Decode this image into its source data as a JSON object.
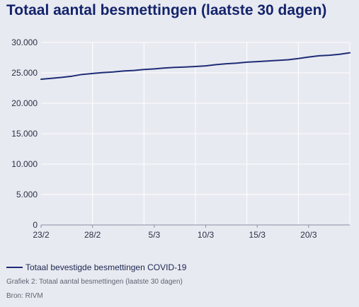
{
  "title": "Totaal aantal besmettingen (laatste 30 dagen)",
  "legend_label": "Totaal bevestigde besmettingen COVID-19",
  "caption": "Grafiek 2: Totaal aantal besmettingen (laatste 30 dagen)",
  "source": "Bron: RIVM",
  "colors": {
    "background": "#e8eaf1",
    "line": "#1e2c76",
    "title": "#14246b",
    "grid": "#ffffff"
  },
  "chart_data": {
    "type": "line",
    "title": "Totaal aantal besmettingen (laatste 30 dagen)",
    "xlabel": "",
    "ylabel": "",
    "grid": true,
    "legend_placement": "bottom-left",
    "ylim": [
      0,
      30000
    ],
    "yticks": [
      0,
      5000,
      10000,
      15000,
      20000,
      25000,
      30000
    ],
    "ytick_labels": [
      "0",
      "5.000",
      "10.000",
      "15.000",
      "20.000",
      "25.000",
      "30.000"
    ],
    "xtick_labels": [
      "23/2",
      "28/2",
      "5/3",
      "10/3",
      "15/3",
      "20/3"
    ],
    "xlim": [
      "23/2",
      "24/3"
    ],
    "series": [
      {
        "name": "Totaal bevestigde besmettingen COVID-19",
        "x": [
          "23/2",
          "24/2",
          "25/2",
          "26/2",
          "27/2",
          "28/2",
          "29/2",
          "1/3",
          "2/3",
          "3/3",
          "4/3",
          "5/3",
          "6/3",
          "7/3",
          "8/3",
          "9/3",
          "10/3",
          "11/3",
          "12/3",
          "13/3",
          "14/3",
          "15/3",
          "16/3",
          "17/3",
          "18/3",
          "19/3",
          "20/3",
          "21/3",
          "22/3",
          "23/3",
          "24/3"
        ],
        "values": [
          23950,
          24100,
          24250,
          24450,
          24750,
          24900,
          25050,
          25150,
          25300,
          25400,
          25550,
          25650,
          25800,
          25900,
          25950,
          26050,
          26150,
          26350,
          26500,
          26600,
          26750,
          26850,
          26950,
          27050,
          27150,
          27350,
          27600,
          27800,
          27900,
          28050,
          28300
        ]
      }
    ]
  }
}
